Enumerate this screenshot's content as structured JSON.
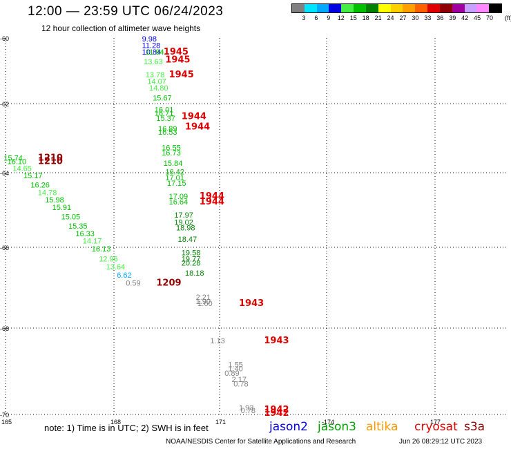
{
  "title": "12:00 — 23:59 UTC 06/24/2023",
  "subtitle": "12 hour collection of altimeter wave heights",
  "colorbar": {
    "unit": "(ft)",
    "ticks": [
      "3",
      "6",
      "9",
      "12",
      "15",
      "18",
      "21",
      "24",
      "27",
      "30",
      "33",
      "36",
      "39",
      "42",
      "45",
      "70"
    ],
    "colors": [
      "#808080",
      "#00e5ff",
      "#00a8ff",
      "#0000e0",
      "#44ee44",
      "#00c000",
      "#008000",
      "#ffff00",
      "#ffd000",
      "#ffa000",
      "#ff6000",
      "#e00000",
      "#900000",
      "#a000a0",
      "#c8a0ff",
      "#ff88ff",
      "#000000"
    ]
  },
  "map": {
    "lat_labels": [
      "-60",
      "-62",
      "-64",
      "-66",
      "-68",
      "-70"
    ],
    "lon_labels": [
      "165",
      "168",
      "171",
      "-174",
      "177"
    ]
  },
  "chart_data": {
    "type": "scatter",
    "title": "12:00 — 23:59 UTC 06/24/2023",
    "subtitle": "12 hour collection of altimeter wave heights",
    "xlabel": "",
    "ylabel": "",
    "wave_height_labels": [
      {
        "text": "9.98",
        "color": "#0000e0",
        "lon": 168.8,
        "lat": -60.1
      },
      {
        "text": "11.28",
        "color": "#0000e0",
        "lon": 168.8,
        "lat": -60.3
      },
      {
        "text": "10.84",
        "color": "#0000e0",
        "lon": 168.8,
        "lat": -60.5
      },
      {
        "text": "11.94",
        "color": "#00c000",
        "lon": 168.9,
        "lat": -60.5
      },
      {
        "text": "13.63",
        "color": "#44ee44",
        "lon": 168.85,
        "lat": -60.8
      },
      {
        "text": "13.78",
        "color": "#44ee44",
        "lon": 168.9,
        "lat": -61.2
      },
      {
        "text": "14.07",
        "color": "#44ee44",
        "lon": 168.95,
        "lat": -61.4
      },
      {
        "text": "14.80",
        "color": "#44ee44",
        "lon": 169.0,
        "lat": -61.6
      },
      {
        "text": "15.67",
        "color": "#00c000",
        "lon": 169.1,
        "lat": -61.9
      },
      {
        "text": "16.01",
        "color": "#00c000",
        "lon": 169.15,
        "lat": -62.25
      },
      {
        "text": "16.71",
        "color": "#00c000",
        "lon": 169.15,
        "lat": -62.35
      },
      {
        "text": "15.37",
        "color": "#00c000",
        "lon": 169.2,
        "lat": -62.5
      },
      {
        "text": "16.89",
        "color": "#00c000",
        "lon": 169.25,
        "lat": -62.8
      },
      {
        "text": "16.53",
        "color": "#00c000",
        "lon": 169.25,
        "lat": -62.9
      },
      {
        "text": "16.55",
        "color": "#00c000",
        "lon": 169.35,
        "lat": -63.35
      },
      {
        "text": "16.73",
        "color": "#00c000",
        "lon": 169.35,
        "lat": -63.5
      },
      {
        "text": "15.84",
        "color": "#00c000",
        "lon": 169.4,
        "lat": -63.8
      },
      {
        "text": "16.42",
        "color": "#00c000",
        "lon": 169.45,
        "lat": -64.05
      },
      {
        "text": "17.01",
        "color": "#00c000",
        "lon": 169.45,
        "lat": -64.2
      },
      {
        "text": "17.15",
        "color": "#00c000",
        "lon": 169.5,
        "lat": -64.35
      },
      {
        "text": "17.09",
        "color": "#00c000",
        "lon": 169.55,
        "lat": -64.7
      },
      {
        "text": "16.64",
        "color": "#00c000",
        "lon": 169.55,
        "lat": -64.85
      },
      {
        "text": "17.97",
        "color": "#008000",
        "lon": 169.7,
        "lat": -65.2
      },
      {
        "text": "19.02",
        "color": "#008000",
        "lon": 169.7,
        "lat": -65.4
      },
      {
        "text": "18.98",
        "color": "#008000",
        "lon": 169.75,
        "lat": -65.55
      },
      {
        "text": "18.47",
        "color": "#008000",
        "lon": 169.8,
        "lat": -65.85
      },
      {
        "text": "19.58",
        "color": "#008000",
        "lon": 169.9,
        "lat": -66.2
      },
      {
        "text": "19.77",
        "color": "#008000",
        "lon": 169.9,
        "lat": -66.35
      },
      {
        "text": "20.28",
        "color": "#008000",
        "lon": 169.9,
        "lat": -66.45
      },
      {
        "text": "18.18",
        "color": "#008000",
        "lon": 170.0,
        "lat": -66.7
      },
      {
        "text": "15.74",
        "color": "#00c000",
        "lon": 164.95,
        "lat": -63.65
      },
      {
        "text": "16.10",
        "color": "#00c000",
        "lon": 165.05,
        "lat": -63.75
      },
      {
        "text": "14.65",
        "color": "#44ee44",
        "lon": 165.2,
        "lat": -63.95
      },
      {
        "text": "15.17",
        "color": "#00c000",
        "lon": 165.5,
        "lat": -64.15
      },
      {
        "text": "16.26",
        "color": "#00c000",
        "lon": 165.7,
        "lat": -64.4
      },
      {
        "text": "14.78",
        "color": "#44ee44",
        "lon": 165.9,
        "lat": -64.6
      },
      {
        "text": "15.98",
        "color": "#00c000",
        "lon": 166.1,
        "lat": -64.8
      },
      {
        "text": "15.91",
        "color": "#00c000",
        "lon": 166.3,
        "lat": -65.0
      },
      {
        "text": "15.05",
        "color": "#00c000",
        "lon": 166.55,
        "lat": -65.25
      },
      {
        "text": "15.35",
        "color": "#00c000",
        "lon": 166.75,
        "lat": -65.5
      },
      {
        "text": "16.33",
        "color": "#00c000",
        "lon": 166.95,
        "lat": -65.7
      },
      {
        "text": "14.17",
        "color": "#44ee44",
        "lon": 167.15,
        "lat": -65.9
      },
      {
        "text": "16.13",
        "color": "#00c000",
        "lon": 167.4,
        "lat": -66.1
      },
      {
        "text": "12.96",
        "color": "#44ee44",
        "lon": 167.6,
        "lat": -66.35
      },
      {
        "text": "13.64",
        "color": "#44ee44",
        "lon": 167.8,
        "lat": -66.55
      },
      {
        "text": "6.62",
        "color": "#00a8ff",
        "lon": 168.1,
        "lat": -66.75
      },
      {
        "text": "0.59",
        "color": "#808080",
        "lon": 168.35,
        "lat": -66.95
      },
      {
        "text": "2.21",
        "color": "#808080",
        "lon": 170.3,
        "lat": -67.3
      },
      {
        "text": "1.90",
        "color": "#808080",
        "lon": 170.3,
        "lat": -67.4
      },
      {
        "text": "1.60",
        "color": "#808080",
        "lon": 170.35,
        "lat": -67.45
      },
      {
        "text": "1.13",
        "color": "#808080",
        "lon": 170.7,
        "lat": -68.35
      },
      {
        "text": "1.55",
        "color": "#808080",
        "lon": 171.2,
        "lat": -68.9
      },
      {
        "text": "1.40",
        "color": "#808080",
        "lon": 171.2,
        "lat": -69.0
      },
      {
        "text": "0.89",
        "color": "#808080",
        "lon": 171.1,
        "lat": -69.1
      },
      {
        "text": "2.17",
        "color": "#808080",
        "lon": 171.3,
        "lat": -69.25
      },
      {
        "text": "0.78",
        "color": "#808080",
        "lon": 171.35,
        "lat": -69.35
      },
      {
        "text": "1.93",
        "color": "#808080",
        "lon": 171.5,
        "lat": -69.9
      },
      {
        "text": "0.78",
        "color": "#808080",
        "lon": 171.55,
        "lat": -69.97
      }
    ],
    "time_labels": [
      {
        "text": "1945",
        "color": "#e00000",
        "lon": 169.4,
        "lat": -60.5
      },
      {
        "text": "1945",
        "color": "#e00000",
        "lon": 169.45,
        "lat": -60.75
      },
      {
        "text": "1945",
        "color": "#e00000",
        "lon": 169.55,
        "lat": -61.2
      },
      {
        "text": "1944",
        "color": "#e00000",
        "lon": 169.9,
        "lat": -62.45
      },
      {
        "text": "1944",
        "color": "#e00000",
        "lon": 170.0,
        "lat": -62.75
      },
      {
        "text": "1944",
        "color": "#e00000",
        "lon": 170.4,
        "lat": -64.7
      },
      {
        "text": "1944",
        "color": "#e00000",
        "lon": 170.4,
        "lat": -64.85
      },
      {
        "text": "1943",
        "color": "#e00000",
        "lon": 171.5,
        "lat": -67.45
      },
      {
        "text": "1943",
        "color": "#e00000",
        "lon": 172.2,
        "lat": -68.35
      },
      {
        "text": "1942",
        "color": "#e00000",
        "lon": 172.2,
        "lat": -69.95
      },
      {
        "text": "1942",
        "color": "#e00000",
        "lon": 172.2,
        "lat": -70.03
      },
      {
        "text": "1210",
        "color": "#900000",
        "lon": 165.9,
        "lat": -63.65
      },
      {
        "text": "1210",
        "color": "#900000",
        "lon": 165.9,
        "lat": -63.75
      },
      {
        "text": "1209",
        "color": "#900000",
        "lon": 169.2,
        "lat": -66.95
      }
    ]
  },
  "legend": {
    "jason2": {
      "label": "jason2",
      "color": "#0000e0"
    },
    "jason3": {
      "label": "jason3",
      "color": "#00a000"
    },
    "altika": {
      "label": "altika",
      "color": "#ff9900"
    },
    "cryosat": {
      "label": "cryosat",
      "color": "#e00000"
    },
    "s3a": {
      "label": "s3a",
      "color": "#900000"
    }
  },
  "note": "note: 1) Time is in UTC; 2) SWH is in feet",
  "credit": "NOAA/NESDIS Center for Satellite Applications and Research",
  "timestamp": "Jun 26 08:29:12 UTC 2023"
}
